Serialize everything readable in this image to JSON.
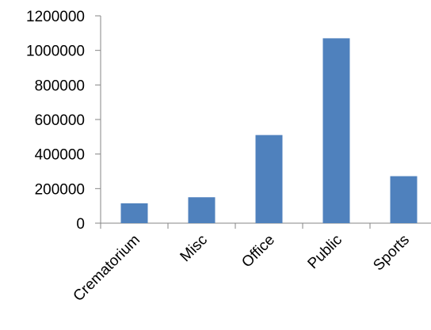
{
  "chart_data": {
    "type": "bar",
    "categories": [
      "Crematorium",
      "Misc",
      "Office",
      "Public",
      "Sports"
    ],
    "values": [
      115000,
      150000,
      510000,
      1070000,
      272000
    ],
    "ylim": [
      0,
      1200000
    ],
    "yticks": [
      "0",
      "200000",
      "400000",
      "600000",
      "800000",
      "1000000",
      "1200000"
    ],
    "title": "",
    "xlabel": "",
    "ylabel": "",
    "grid": false,
    "legend": "none",
    "colors": {
      "bar": "#4f81bd",
      "axis": "#868686",
      "text": "#000000"
    }
  }
}
